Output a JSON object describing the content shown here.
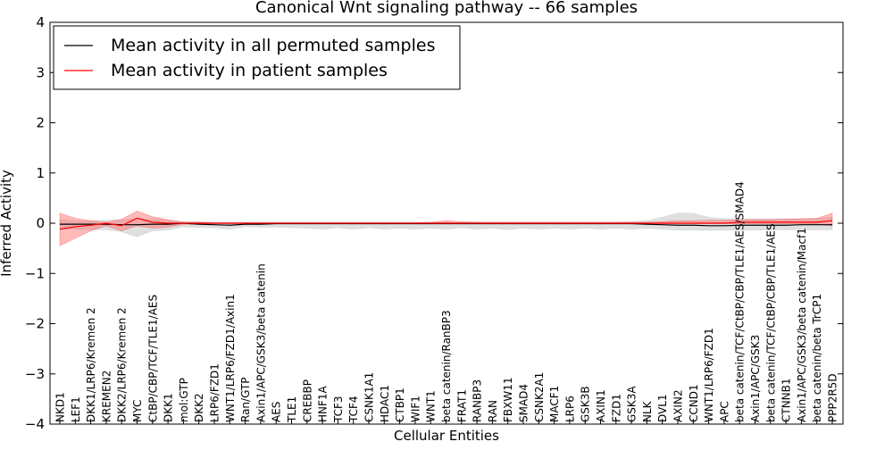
{
  "chart_data": {
    "type": "line",
    "title": "Canonical Wnt signaling pathway -- 66 samples",
    "xlabel": "Cellular Entities",
    "ylabel": "Inferred Activity",
    "ylim": [
      -4,
      4
    ],
    "yticks": [
      "−4",
      "−3",
      "−2",
      "−1",
      "0",
      "1",
      "2",
      "3",
      "4"
    ],
    "grid": false,
    "legend_position": "top-left",
    "colors": {
      "permuted": "#000000",
      "patient": "#ff0000",
      "permuted_band": "#cccccc",
      "patient_band": "#ff6666"
    },
    "categories": [
      "NKD1",
      "LEF1",
      "DKK1/LRP6/Kremen 2",
      "KREMEN2",
      "DKK2/LRP6/Kremen 2",
      "MYC",
      "CtBP/CBP/TCF/TLE1/AES",
      "DKK1",
      "mol:GTP",
      "DKK2",
      "LRP6/FZD1",
      "WNT1/LRP6/FZD1/Axin1",
      "Ran/GTP",
      "Axin1/APC/GSK3/beta catenin",
      "AES",
      "TLE1",
      "CREBBP",
      "HNF1A",
      "TCF3",
      "TCF4",
      "CSNK1A1",
      "HDAC1",
      "CTBP1",
      "WIF1",
      "WNT1",
      "beta catenin/RanBP3",
      "FRAT1",
      "RANBP3",
      "RAN",
      "FBXW11",
      "SMAD4",
      "CSNK2A1",
      "MACF1",
      "LRP6",
      "GSK3B",
      "AXIN1",
      "FZD1",
      "GSK3A",
      "NLK",
      "DVL1",
      "AXIN2",
      "CCND1",
      "WNT1/LRP6/FZD1",
      "APC",
      "beta catenin/TCF/CtBP/CBP/TLE1/AES/SMAD4",
      "Axin1/APC/GSK3",
      "beta catenin/TCF/CtBP/CBP/TLE1/AES",
      "CTNNB1",
      "Axin1/APC/GSK3/beta catenin/Macf1",
      "beta catenin/beta TrCP1",
      "PPP2R5D"
    ],
    "series": [
      {
        "name": "Mean activity in all permuted samples",
        "values": [
          -0.02,
          -0.02,
          -0.02,
          -0.02,
          -0.03,
          -0.03,
          -0.02,
          -0.02,
          0.0,
          -0.02,
          -0.03,
          -0.04,
          -0.02,
          -0.02,
          -0.01,
          -0.01,
          -0.01,
          -0.01,
          -0.01,
          -0.01,
          -0.01,
          -0.01,
          -0.01,
          -0.01,
          -0.01,
          -0.01,
          -0.01,
          -0.01,
          -0.01,
          -0.01,
          -0.01,
          -0.01,
          -0.01,
          -0.01,
          -0.01,
          -0.01,
          -0.01,
          -0.01,
          -0.02,
          -0.03,
          -0.04,
          -0.04,
          -0.05,
          -0.05,
          -0.04,
          -0.04,
          -0.04,
          -0.04,
          -0.03,
          -0.03,
          -0.03
        ],
        "upper": [
          0.07,
          0.05,
          0.05,
          0.06,
          0.07,
          0.09,
          0.08,
          0.06,
          0.03,
          0.03,
          0.02,
          0.02,
          0.02,
          0.02,
          0.02,
          0.02,
          0.02,
          0.02,
          0.02,
          0.02,
          0.02,
          0.02,
          0.02,
          0.02,
          0.02,
          0.02,
          0.02,
          0.02,
          0.02,
          0.02,
          0.02,
          0.02,
          0.02,
          0.02,
          0.02,
          0.02,
          0.02,
          0.03,
          0.05,
          0.12,
          0.2,
          0.2,
          0.12,
          0.09,
          0.09,
          0.09,
          0.09,
          0.09,
          0.09,
          0.1,
          0.12
        ],
        "lower": [
          -0.12,
          -0.12,
          -0.13,
          -0.13,
          -0.17,
          -0.27,
          -0.15,
          -0.14,
          -0.07,
          -0.09,
          -0.09,
          -0.12,
          -0.07,
          -0.08,
          -0.08,
          -0.09,
          -0.1,
          -0.12,
          -0.09,
          -0.12,
          -0.09,
          -0.12,
          -0.1,
          -0.12,
          -0.1,
          -0.12,
          -0.09,
          -0.12,
          -0.1,
          -0.13,
          -0.1,
          -0.12,
          -0.1,
          -0.12,
          -0.1,
          -0.12,
          -0.1,
          -0.12,
          -0.1,
          -0.12,
          -0.14,
          -0.14,
          -0.14,
          -0.14,
          -0.14,
          -0.14,
          -0.13,
          -0.13,
          -0.13,
          -0.13,
          -0.13
        ]
      },
      {
        "name": "Mean activity in patient samples",
        "values": [
          -0.12,
          -0.07,
          -0.04,
          0.0,
          -0.05,
          0.1,
          0.02,
          0.0,
          0.0,
          0.0,
          0.0,
          0.0,
          0.0,
          0.0,
          0.0,
          0.0,
          0.0,
          0.0,
          0.0,
          0.0,
          0.0,
          0.0,
          0.0,
          0.0,
          0.0,
          0.0,
          0.0,
          0.0,
          0.0,
          0.0,
          0.0,
          0.0,
          0.0,
          0.0,
          0.0,
          0.0,
          0.0,
          0.0,
          0.0,
          0.0,
          0.0,
          0.0,
          0.0,
          0.0,
          0.02,
          0.02,
          0.02,
          0.02,
          0.02,
          0.02,
          0.05
        ],
        "upper": [
          0.2,
          0.1,
          0.05,
          0.02,
          0.08,
          0.24,
          0.13,
          0.07,
          0.02,
          0.02,
          0.01,
          0.01,
          0.01,
          0.01,
          0.01,
          0.01,
          0.01,
          0.01,
          0.01,
          0.01,
          0.01,
          0.01,
          0.01,
          0.01,
          0.02,
          0.05,
          0.03,
          0.02,
          0.02,
          0.02,
          0.02,
          0.02,
          0.02,
          0.02,
          0.02,
          0.02,
          0.02,
          0.02,
          0.02,
          0.03,
          0.05,
          0.05,
          0.06,
          0.06,
          0.07,
          0.07,
          0.07,
          0.08,
          0.09,
          0.1,
          0.2
        ],
        "lower": [
          -0.45,
          -0.3,
          -0.15,
          -0.05,
          -0.15,
          -0.05,
          -0.1,
          -0.08,
          -0.02,
          -0.02,
          -0.01,
          -0.01,
          -0.01,
          -0.01,
          -0.01,
          -0.01,
          -0.01,
          -0.01,
          -0.01,
          -0.01,
          -0.01,
          -0.01,
          -0.01,
          -0.01,
          -0.01,
          -0.01,
          -0.01,
          -0.01,
          -0.01,
          -0.01,
          -0.01,
          -0.01,
          -0.01,
          -0.01,
          -0.01,
          -0.01,
          -0.01,
          -0.01,
          -0.01,
          -0.01,
          -0.01,
          -0.01,
          -0.01,
          -0.01,
          -0.01,
          -0.01,
          -0.01,
          -0.01,
          -0.01,
          -0.02,
          -0.05
        ]
      }
    ]
  }
}
